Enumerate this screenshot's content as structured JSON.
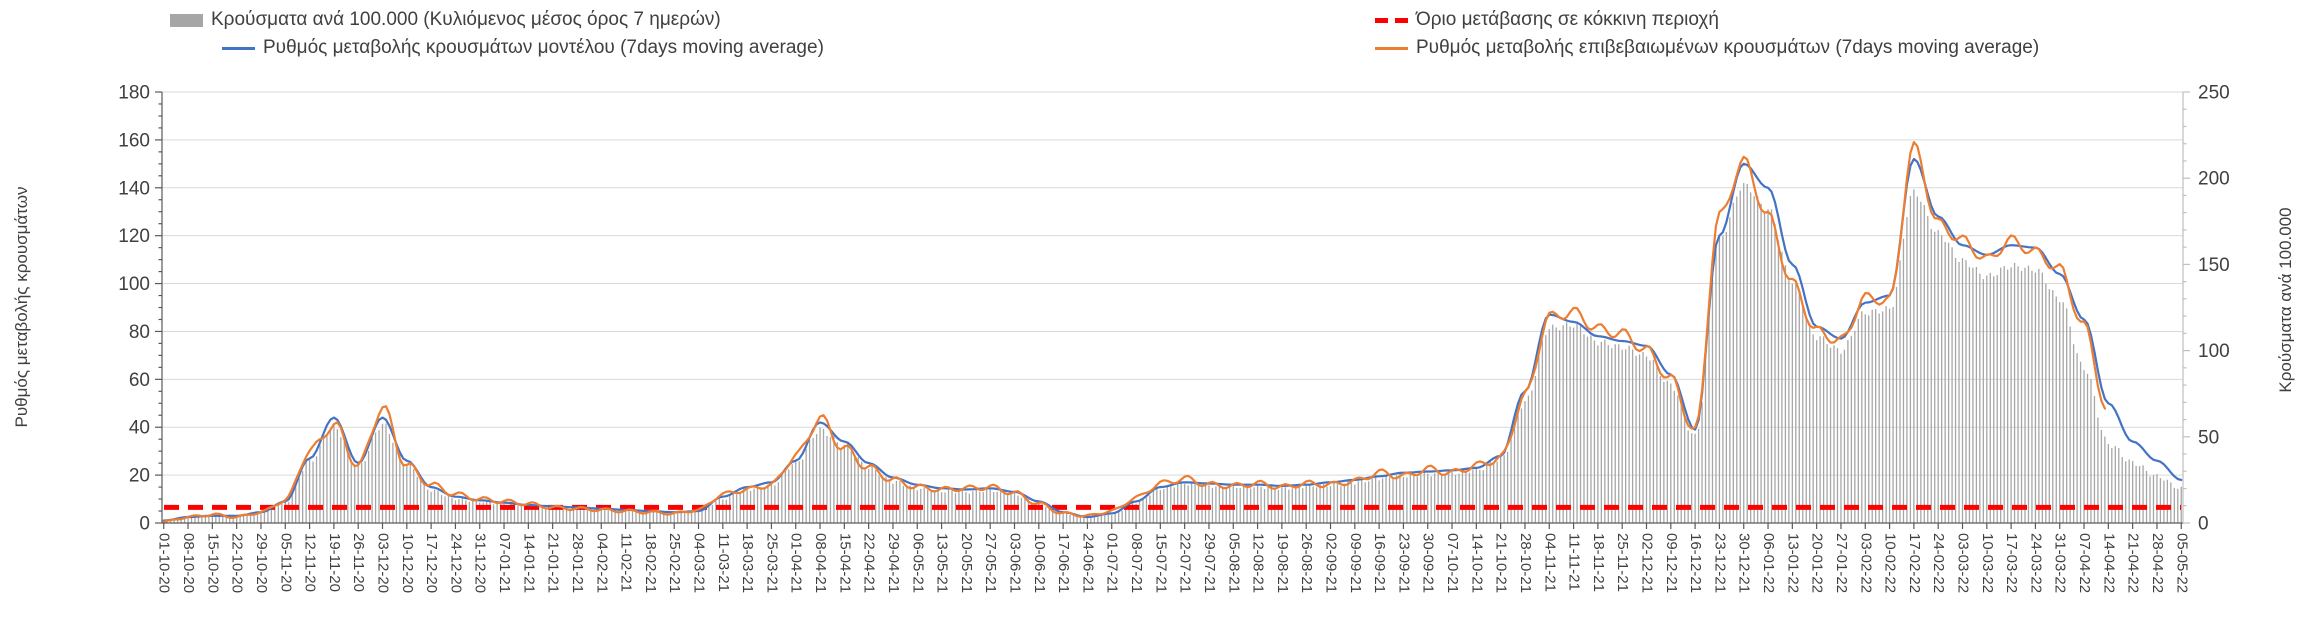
{
  "legend": {
    "items": [
      {
        "label": "Κρούσματα ανά 100.000 (Κυλιόμενος μέσος όρος 7 ημερών)",
        "swatch": "bar-swatch",
        "color": "#a6a6a6"
      },
      {
        "label": "Ρυθμός μεταβολής κρουσμάτων μοντέλου (7days moving average)",
        "swatch": "line-swatch",
        "color": "#4472c4"
      },
      {
        "label": "Όριο μετάβασης σε κόκκινη περιοχή",
        "swatch": "dash-swatch",
        "color": "#ff0000"
      },
      {
        "label": "Ρυθμός μεταβολής επιβεβαιωμένων κρουσμάτων (7days moving average)",
        "swatch": "line-swatch",
        "color": "#ed7d31"
      }
    ]
  },
  "chart_data": {
    "type": "combo-bar-line",
    "title": "",
    "legend_position": "top",
    "grid": true,
    "colors": {
      "bars": "#a6a6a6",
      "model_line": "#4472c4",
      "confirmed_line": "#ed7d31",
      "threshold_line": "#ff0000",
      "gridline": "#d9d9d9",
      "axis_dark": "#595959",
      "axis_light": "#bfbfbf",
      "text": "#404040"
    },
    "axes": {
      "left": {
        "title": "Ρυθμός μεταβολής κρουσμάτων",
        "range": [
          0,
          180
        ],
        "ticks": [
          0,
          20,
          40,
          60,
          80,
          100,
          120,
          140,
          160,
          180
        ],
        "minor_step": 5
      },
      "right": {
        "title": "Κρούσματα ανά 100.000",
        "range": [
          0,
          250
        ],
        "ticks": [
          0,
          50,
          100,
          150,
          200,
          250
        ],
        "minor_step": 10
      }
    },
    "x": [
      "01-10-20",
      "08-10-20",
      "15-10-20",
      "22-10-20",
      "29-10-20",
      "05-11-20",
      "12-11-20",
      "19-11-20",
      "26-11-20",
      "03-12-20",
      "10-12-20",
      "17-12-20",
      "24-12-20",
      "31-12-20",
      "07-01-21",
      "14-01-21",
      "21-01-21",
      "28-01-21",
      "04-02-21",
      "11-02-21",
      "18-02-21",
      "25-02-21",
      "04-03-21",
      "11-03-21",
      "18-03-21",
      "25-03-21",
      "01-04-21",
      "08-04-21",
      "15-04-21",
      "22-04-21",
      "29-04-21",
      "06-05-21",
      "13-05-21",
      "20-05-21",
      "27-05-21",
      "03-06-21",
      "10-06-21",
      "17-06-21",
      "24-06-21",
      "01-07-21",
      "08-07-21",
      "15-07-21",
      "22-07-21",
      "29-07-21",
      "05-08-21",
      "12-08-21",
      "19-08-21",
      "26-08-21",
      "02-09-21",
      "09-09-21",
      "16-09-21",
      "23-09-21",
      "30-09-21",
      "07-10-21",
      "14-10-21",
      "21-10-21",
      "28-10-21",
      "04-11-21",
      "11-11-21",
      "18-11-21",
      "25-11-21",
      "02-12-21",
      "09-12-21",
      "16-12-21",
      "23-12-21",
      "30-12-21",
      "06-01-22",
      "13-01-22",
      "20-01-22",
      "27-01-22",
      "03-02-22",
      "10-02-22",
      "17-02-22",
      "24-02-22",
      "03-03-22",
      "10-03-22",
      "17-03-22",
      "24-03-22",
      "31-03-22",
      "07-04-22",
      "14-04-22",
      "21-04-22",
      "28-04-22",
      "05-05-22"
    ],
    "series": [
      {
        "name": "Κρούσματα ανά 100.000 (Κυλιόμενος μέσος όρος 7 ημερών)",
        "type": "bar",
        "axis": "right",
        "values": [
          1.5,
          3.5,
          4.5,
          4.5,
          6,
          12,
          36,
          56,
          33,
          57,
          34,
          19,
          14,
          12.5,
          11,
          10,
          9,
          8.5,
          8,
          7,
          6.5,
          6,
          7,
          14,
          19.5,
          22,
          35,
          54,
          45,
          32,
          24,
          20,
          18.5,
          18,
          19,
          16.5,
          11,
          5.5,
          3.5,
          5,
          12,
          20,
          23,
          21.5,
          21,
          21,
          20,
          21.5,
          22,
          23.5,
          26,
          27.5,
          28.5,
          29,
          31,
          37,
          70,
          113,
          115,
          105,
          102,
          97,
          80,
          50,
          165,
          196,
          182,
          140,
          108,
          100,
          122,
          124,
          192,
          168,
          152,
          143,
          149,
          147,
          130,
          90,
          46,
          35,
          27,
          20
        ]
      },
      {
        "name": "Ρυθμός μεταβολής κρουσμάτων μοντέλου (7days moving average)",
        "type": "line",
        "axis": "left",
        "values": [
          1,
          2.5,
          3,
          3,
          4.5,
          9,
          27,
          44,
          25,
          44,
          26,
          15,
          11,
          9.5,
          8.5,
          7.5,
          7,
          6.5,
          6,
          5.5,
          5,
          4.5,
          5,
          11,
          15,
          17,
          26,
          42,
          34,
          25,
          19,
          16,
          14.5,
          14,
          14.5,
          13,
          9,
          4.5,
          2.5,
          4,
          9,
          15,
          17,
          16.5,
          16,
          16,
          15.5,
          16,
          17,
          18,
          19.5,
          21,
          21.5,
          22,
          23,
          28,
          55,
          87,
          84,
          78,
          76,
          74,
          62,
          39,
          120,
          150,
          140,
          108,
          82,
          77,
          92,
          95,
          152,
          128,
          116,
          112,
          116,
          115,
          104,
          85,
          50,
          34,
          26,
          18
        ]
      },
      {
        "name": "Ρυθμός μεταβολής επιβεβαιωμένων κρουσμάτων (7days moving average)",
        "type": "line",
        "axis": "left",
        "values": [
          0.5,
          2.5,
          3.5,
          2.5,
          4.5,
          9.5,
          30,
          41,
          24,
          48,
          24,
          16,
          12,
          10,
          9,
          8,
          6.5,
          6,
          5.5,
          5,
          4.5,
          4,
          5.5,
          12,
          14,
          16,
          28,
          43.5,
          31,
          23,
          18,
          15,
          14,
          14.5,
          15,
          12.5,
          8,
          4,
          3,
          5,
          10.5,
          16.5,
          18.5,
          16,
          15.5,
          16.5,
          15,
          16.5,
          16,
          17.5,
          21,
          19.5,
          22.5,
          21,
          24,
          27,
          53,
          86,
          88,
          81,
          79,
          72,
          60,
          38,
          128,
          151,
          128,
          100,
          80,
          76,
          94,
          93,
          157,
          125,
          118,
          110,
          118,
          113,
          106,
          82,
          45,
          null,
          null,
          null
        ]
      }
    ],
    "threshold": {
      "name": "Όριο μετάβασης σε κόκκινη περιοχή",
      "axis": "left",
      "value": 6.5
    }
  }
}
